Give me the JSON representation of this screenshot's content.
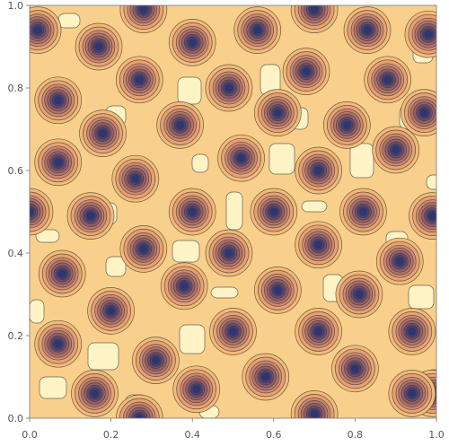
{
  "chart_data": {
    "type": "contour",
    "xlim": [
      0.0,
      1.0
    ],
    "ylim": [
      0.0,
      1.0
    ],
    "x_ticks": [
      "0.0",
      "0.2",
      "0.4",
      "0.6",
      "0.8",
      "1.0"
    ],
    "y_ticks": [
      "0.0",
      "0.2",
      "0.4",
      "0.6",
      "0.8",
      "1.0"
    ],
    "grid": false,
    "legend": "none",
    "colors": {
      "background": "#f8d08c",
      "plateau": "#fdf3c4",
      "levels": [
        "#f4ba76",
        "#e7a273",
        "#cf8a6e",
        "#b47368",
        "#925e68",
        "#6d4b6c",
        "#474173",
        "#2b3679"
      ]
    },
    "minima": [
      {
        "x": 0.02,
        "y": 0.94
      },
      {
        "x": 0.17,
        "y": 0.9
      },
      {
        "x": 0.28,
        "y": 0.99
      },
      {
        "x": 0.4,
        "y": 0.91
      },
      {
        "x": 0.56,
        "y": 0.94
      },
      {
        "x": 0.7,
        "y": 0.99
      },
      {
        "x": 0.83,
        "y": 0.94
      },
      {
        "x": 0.98,
        "y": 0.93
      },
      {
        "x": 0.07,
        "y": 0.77
      },
      {
        "x": 0.27,
        "y": 0.82
      },
      {
        "x": 0.49,
        "y": 0.8
      },
      {
        "x": 0.68,
        "y": 0.84
      },
      {
        "x": 0.88,
        "y": 0.82
      },
      {
        "x": 0.18,
        "y": 0.69
      },
      {
        "x": 0.37,
        "y": 0.71
      },
      {
        "x": 0.61,
        "y": 0.74
      },
      {
        "x": 0.78,
        "y": 0.71
      },
      {
        "x": 0.97,
        "y": 0.74
      },
      {
        "x": 0.07,
        "y": 0.62
      },
      {
        "x": 0.26,
        "y": 0.58
      },
      {
        "x": 0.52,
        "y": 0.63
      },
      {
        "x": 0.71,
        "y": 0.6
      },
      {
        "x": 0.9,
        "y": 0.65
      },
      {
        "x": 0.0,
        "y": 0.5
      },
      {
        "x": 0.15,
        "y": 0.49
      },
      {
        "x": 0.4,
        "y": 0.5
      },
      {
        "x": 0.6,
        "y": 0.5
      },
      {
        "x": 0.82,
        "y": 0.5
      },
      {
        "x": 0.99,
        "y": 0.49
      },
      {
        "x": 0.28,
        "y": 0.41
      },
      {
        "x": 0.49,
        "y": 0.4
      },
      {
        "x": 0.71,
        "y": 0.42
      },
      {
        "x": 0.91,
        "y": 0.38
      },
      {
        "x": 0.08,
        "y": 0.35
      },
      {
        "x": 0.38,
        "y": 0.32
      },
      {
        "x": 0.61,
        "y": 0.31
      },
      {
        "x": 0.81,
        "y": 0.3
      },
      {
        "x": 0.2,
        "y": 0.26
      },
      {
        "x": 0.5,
        "y": 0.21
      },
      {
        "x": 0.71,
        "y": 0.21
      },
      {
        "x": 0.94,
        "y": 0.21
      },
      {
        "x": 0.07,
        "y": 0.18
      },
      {
        "x": 0.31,
        "y": 0.14
      },
      {
        "x": 0.58,
        "y": 0.1
      },
      {
        "x": 0.8,
        "y": 0.12
      },
      {
        "x": 0.16,
        "y": 0.06
      },
      {
        "x": 0.41,
        "y": 0.07
      },
      {
        "x": 0.99,
        "y": 0.06
      },
      {
        "x": 0.27,
        "y": 0.0
      },
      {
        "x": 0.7,
        "y": 0.01
      },
      {
        "x": 0.94,
        "y": 0.06
      }
    ]
  }
}
